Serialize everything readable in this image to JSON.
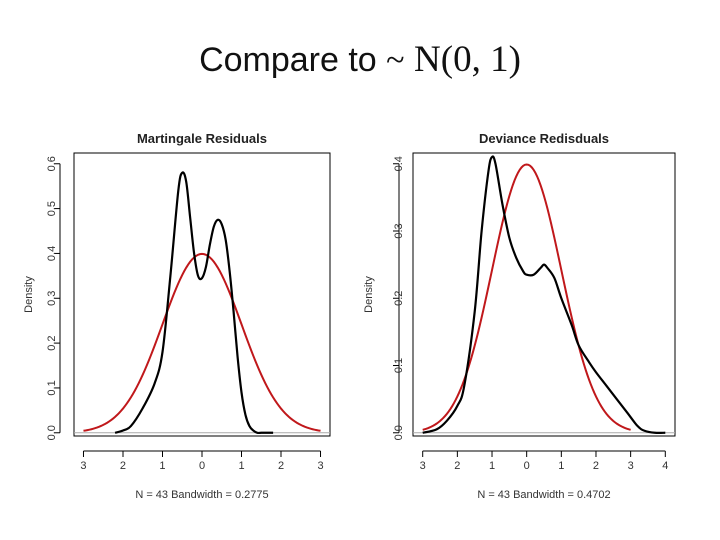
{
  "slide": {
    "title_text": "Compare to",
    "title_tilde": "~",
    "title_math": "N(0, 1)"
  },
  "colors": {
    "density": "#000000",
    "normal": "#c0181b",
    "baseline": "#aaaaaa",
    "frame": "#000000"
  },
  "chart_data": [
    {
      "type": "line",
      "title": "Martingale Residuals",
      "xlabel": "N = 43   Bandwidth = 0.2775",
      "ylabel": "Density",
      "xlim": [
        -3,
        3
      ],
      "ylim": [
        0,
        0.6
      ],
      "xticks": [
        -3,
        -2,
        -1,
        0,
        1,
        2,
        3
      ],
      "xtick_labels": [
        "3",
        "2",
        "1",
        "0",
        "1",
        "2",
        "3"
      ],
      "yticks": [
        0.0,
        0.1,
        0.2,
        0.3,
        0.4,
        0.5,
        0.6
      ],
      "ytick_labels": [
        "0.0",
        "0.1",
        "0.2",
        "0.3",
        "0.4",
        "0.5",
        "0.6"
      ],
      "series": [
        {
          "name": "density",
          "x": [
            -2.2,
            -2.0,
            -1.8,
            -1.5,
            -1.2,
            -1.0,
            -0.8,
            -0.6,
            -0.5,
            -0.4,
            -0.3,
            -0.2,
            -0.1,
            0.0,
            0.1,
            0.2,
            0.3,
            0.4,
            0.5,
            0.6,
            0.7,
            0.8,
            0.9,
            1.0,
            1.1,
            1.2,
            1.3,
            1.4,
            1.5,
            1.6,
            1.7,
            1.8
          ],
          "y": [
            0.0,
            0.005,
            0.015,
            0.055,
            0.11,
            0.18,
            0.35,
            0.54,
            0.58,
            0.56,
            0.48,
            0.4,
            0.35,
            0.345,
            0.37,
            0.42,
            0.46,
            0.475,
            0.465,
            0.43,
            0.36,
            0.27,
            0.17,
            0.09,
            0.04,
            0.015,
            0.005,
            0.0,
            0.0,
            0.0,
            0.0,
            0.0
          ]
        },
        {
          "name": "N(0, 1)",
          "function": "normal_pdf",
          "mean": 0,
          "sd": 1,
          "from": -3,
          "to": 3
        }
      ]
    },
    {
      "type": "line",
      "title": "Deviance Redisduals",
      "xlabel": "N = 43   Bandwidth = 0.4702",
      "ylabel": "Density",
      "xlim": [
        -3,
        4
      ],
      "ylim": [
        0,
        0.4
      ],
      "xticks": [
        -3,
        -2,
        -1,
        0,
        1,
        2,
        3,
        4
      ],
      "xtick_labels": [
        "3",
        "2",
        "1",
        "0",
        "1",
        "2",
        "3",
        "4"
      ],
      "yticks": [
        0.0,
        0.1,
        0.2,
        0.3,
        0.4
      ],
      "ytick_labels": [
        "0.0",
        "0.1",
        "0.2",
        "0.3",
        "0.4"
      ],
      "series": [
        {
          "name": "density",
          "x": [
            -3.0,
            -2.6,
            -2.3,
            -2.0,
            -1.8,
            -1.5,
            -1.3,
            -1.1,
            -1.0,
            -0.9,
            -0.7,
            -0.5,
            -0.3,
            -0.1,
            0.0,
            0.2,
            0.4,
            0.5,
            0.6,
            0.8,
            1.0,
            1.3,
            1.5,
            1.8,
            2.0,
            2.3,
            2.6,
            2.9,
            3.2,
            3.4,
            3.7,
            4.0
          ],
          "y": [
            0.0,
            0.005,
            0.018,
            0.04,
            0.07,
            0.18,
            0.3,
            0.39,
            0.41,
            0.4,
            0.34,
            0.29,
            0.26,
            0.24,
            0.235,
            0.235,
            0.245,
            0.25,
            0.245,
            0.23,
            0.2,
            0.16,
            0.13,
            0.105,
            0.09,
            0.07,
            0.05,
            0.03,
            0.01,
            0.003,
            0.0,
            0.0
          ]
        },
        {
          "name": "N(0, 1)",
          "function": "normal_pdf",
          "mean": 0,
          "sd": 1,
          "from": -3,
          "to": 3
        }
      ]
    }
  ]
}
